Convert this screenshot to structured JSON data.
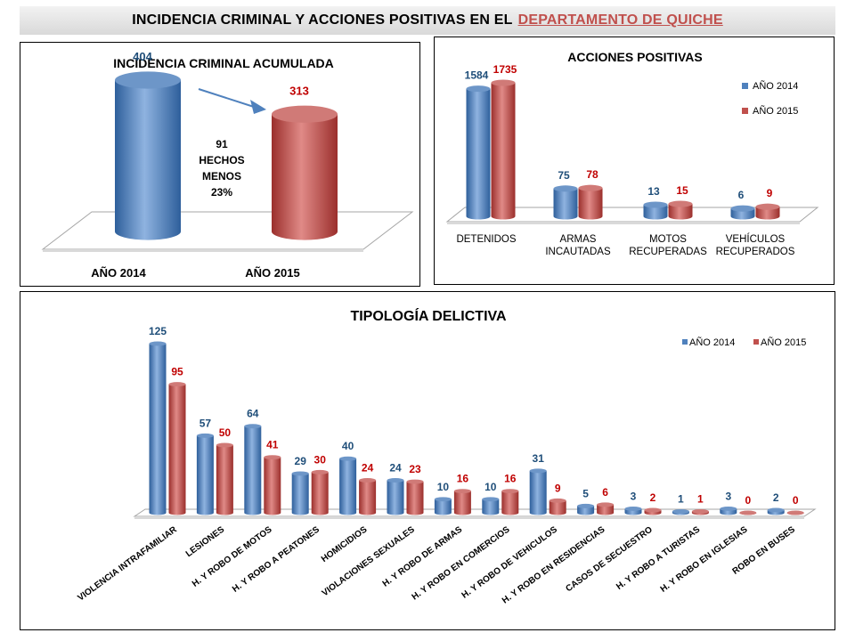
{
  "header": {
    "title_prefix": "INCIDENCIA CRIMINAL Y ACCIONES POSITIVAS EN EL",
    "title_highlight": "DEPARTAMENTO DE QUICHE"
  },
  "colors": {
    "year_2014": "#4f81bd",
    "year_2015": "#c0504d",
    "label_2014": "#1f4e79",
    "label_2015": "#c00000"
  },
  "chart_data": [
    {
      "type": "bar",
      "title": "INCIDENCIA CRIMINAL ACUMULADA",
      "categories": [
        "AÑO 2014",
        "AÑO 2015"
      ],
      "values": [
        404,
        313
      ],
      "ylim": [
        0,
        404
      ],
      "annotation": [
        "91",
        "HECHOS",
        "MENOS",
        "23%"
      ],
      "legend": "none"
    },
    {
      "type": "bar",
      "title": "ACCIONES POSITIVAS",
      "categories": [
        [
          "DETENIDOS"
        ],
        [
          "ARMAS",
          "INCAUTADAS"
        ],
        [
          "MOTOS",
          "RECUPERADAS"
        ],
        [
          "VEHÍCULOS",
          "RECUPERADOS"
        ]
      ],
      "series": [
        {
          "name": "AÑO 2014",
          "values": [
            1584,
            75,
            13,
            6
          ]
        },
        {
          "name": "AÑO 2015",
          "values": [
            1735,
            78,
            15,
            9
          ]
        }
      ],
      "ylim": [
        0,
        1735
      ],
      "legend": "right"
    },
    {
      "type": "bar",
      "title": "TIPOLOGÍA DELICTIVA",
      "categories": [
        "VIOLENCIA INTRAFAMILIAR",
        "LESIONES",
        "H. Y ROBO DE MOTOS",
        "H. Y ROBO A PEATONES",
        "HOMICIDIOS",
        "VIOLACIONES SEXUALES",
        "H. Y ROBO DE ARMAS",
        "H. Y ROBO EN COMERCIOS",
        "H. Y ROBO DE VEHICULOS",
        "H. Y ROBO EN RESIDENCIAS",
        "CASOS DE SECUESTRO",
        "H. Y ROBO A TURISTAS",
        "H. Y ROBO EN IGLESIAS",
        "ROBO EN BUSES"
      ],
      "series": [
        {
          "name": "AÑO 2014",
          "values": [
            125,
            57,
            64,
            29,
            40,
            24,
            10,
            10,
            31,
            5,
            3,
            1,
            3,
            2
          ]
        },
        {
          "name": "AÑO 2015",
          "values": [
            95,
            50,
            41,
            30,
            24,
            23,
            16,
            16,
            9,
            6,
            2,
            1,
            0,
            0
          ]
        }
      ],
      "ylim": [
        0,
        125
      ],
      "legend": "top-right"
    }
  ]
}
